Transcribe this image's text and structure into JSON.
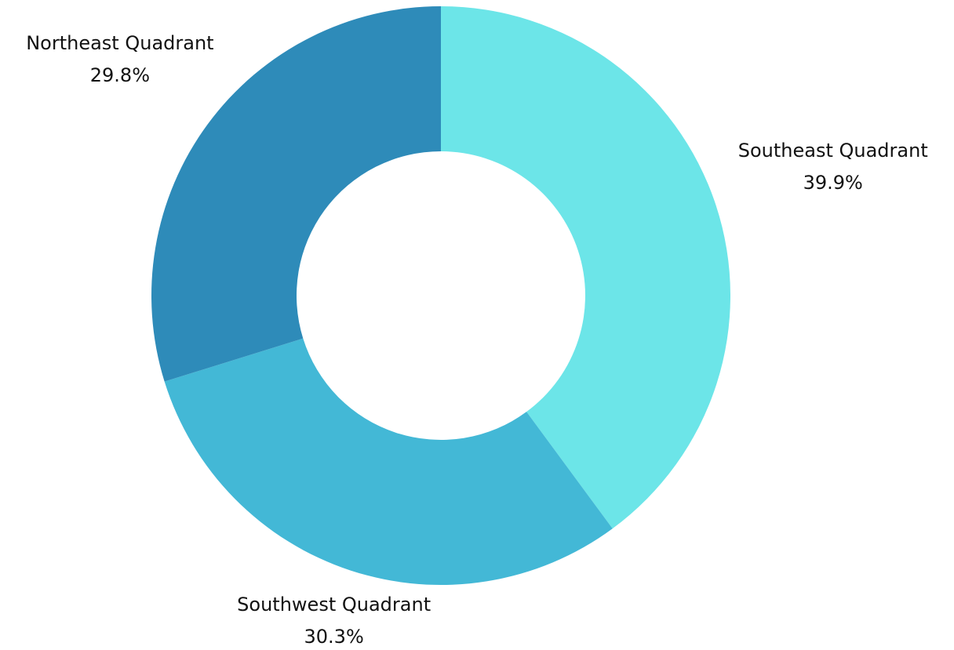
{
  "chart_data": {
    "type": "donut",
    "categories": [
      "Southeast Quadrant",
      "Southwest Quadrant",
      "Northeast Quadrant"
    ],
    "values": [
      39.9,
      30.3,
      29.8
    ],
    "value_labels": [
      "39.9%",
      "30.3%",
      "29.8%"
    ],
    "colors": [
      "#6ce5e8",
      "#43b8d6",
      "#2e8bb9"
    ]
  }
}
